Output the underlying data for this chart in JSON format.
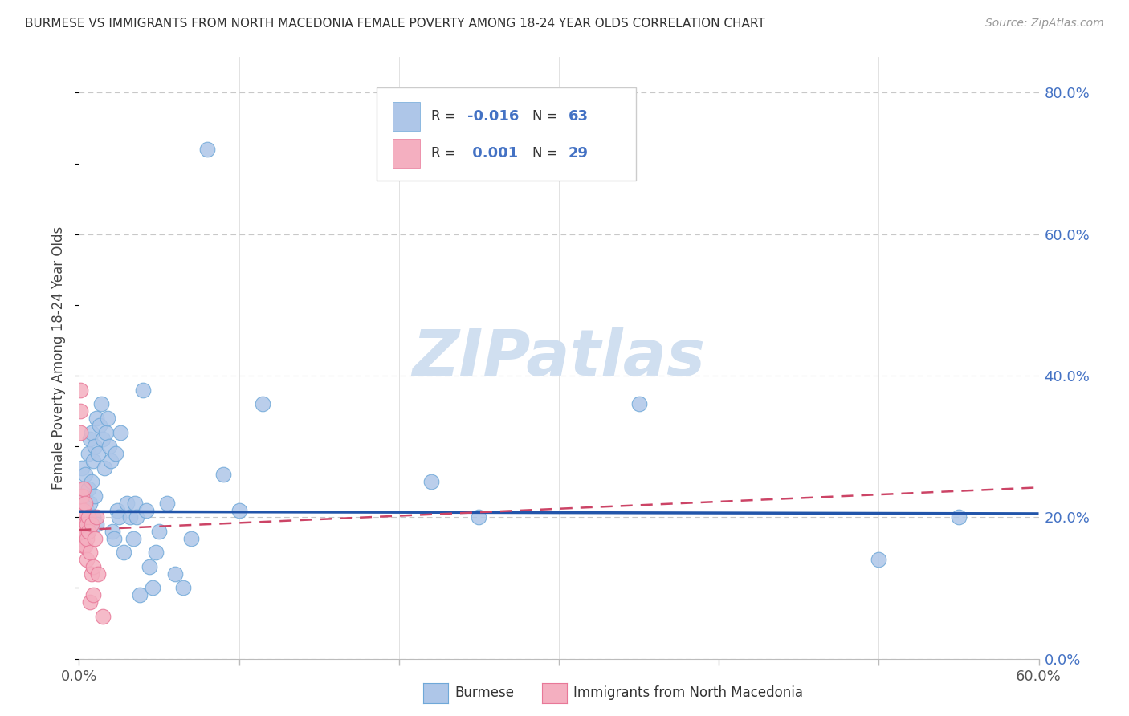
{
  "title": "BURMESE VS IMMIGRANTS FROM NORTH MACEDONIA FEMALE POVERTY AMONG 18-24 YEAR OLDS CORRELATION CHART",
  "source": "Source: ZipAtlas.com",
  "ylabel": "Female Poverty Among 18-24 Year Olds",
  "xlim": [
    0.0,
    0.6
  ],
  "ylim": [
    0.0,
    0.85
  ],
  "x_tick_positions": [
    0.0,
    0.6
  ],
  "x_tick_labels": [
    "0.0%",
    "60.0%"
  ],
  "y_ticks_right": [
    0.0,
    0.2,
    0.4,
    0.6,
    0.8
  ],
  "y_tick_labels_right": [
    "0.0%",
    "20.0%",
    "40.0%",
    "60.0%",
    "80.0%"
  ],
  "background_color": "#ffffff",
  "grid_color": "#c8c8c8",
  "series1_color": "#aec6e8",
  "series1_edge": "#6fa8d8",
  "series2_color": "#f4afc0",
  "series2_edge": "#e87898",
  "line1_color": "#2255aa",
  "line2_color": "#cc4466",
  "line1_intercept": 0.208,
  "line1_slope": -0.005,
  "line2_intercept": 0.182,
  "line2_slope": 0.1,
  "watermark_color": "#d0dff0",
  "legend_r1_label": "R = ",
  "legend_r1_val": "-0.016",
  "legend_n1_label": "N = ",
  "legend_n1_val": "63",
  "legend_r2_label": "R = ",
  "legend_r2_val": "0.001",
  "legend_n2_label": "N = ",
  "legend_n2_val": "29",
  "bottom_label1": "Burmese",
  "bottom_label2": "Immigrants from North Macedonia",
  "burmese_x": [
    0.001,
    0.001,
    0.002,
    0.002,
    0.003,
    0.003,
    0.004,
    0.004,
    0.005,
    0.005,
    0.006,
    0.006,
    0.007,
    0.007,
    0.008,
    0.008,
    0.009,
    0.009,
    0.01,
    0.01,
    0.011,
    0.011,
    0.012,
    0.013,
    0.014,
    0.015,
    0.016,
    0.017,
    0.018,
    0.019,
    0.02,
    0.021,
    0.022,
    0.023,
    0.024,
    0.025,
    0.026,
    0.028,
    0.03,
    0.032,
    0.034,
    0.035,
    0.036,
    0.038,
    0.04,
    0.042,
    0.044,
    0.046,
    0.048,
    0.05,
    0.055,
    0.06,
    0.065,
    0.07,
    0.08,
    0.09,
    0.1,
    0.115,
    0.22,
    0.25,
    0.35,
    0.5,
    0.55
  ],
  "burmese_y": [
    0.21,
    0.24,
    0.2,
    0.27,
    0.23,
    0.19,
    0.26,
    0.22,
    0.21,
    0.18,
    0.29,
    0.24,
    0.31,
    0.22,
    0.32,
    0.25,
    0.2,
    0.28,
    0.3,
    0.23,
    0.19,
    0.34,
    0.29,
    0.33,
    0.36,
    0.31,
    0.27,
    0.32,
    0.34,
    0.3,
    0.28,
    0.18,
    0.17,
    0.29,
    0.21,
    0.2,
    0.32,
    0.15,
    0.22,
    0.2,
    0.17,
    0.22,
    0.2,
    0.09,
    0.38,
    0.21,
    0.13,
    0.1,
    0.15,
    0.18,
    0.22,
    0.12,
    0.1,
    0.17,
    0.72,
    0.26,
    0.21,
    0.36,
    0.25,
    0.2,
    0.36,
    0.14,
    0.2
  ],
  "mac_x": [
    0.001,
    0.001,
    0.001,
    0.001,
    0.002,
    0.002,
    0.002,
    0.003,
    0.003,
    0.003,
    0.003,
    0.004,
    0.004,
    0.004,
    0.005,
    0.005,
    0.005,
    0.006,
    0.006,
    0.007,
    0.007,
    0.008,
    0.008,
    0.009,
    0.009,
    0.01,
    0.011,
    0.012,
    0.015
  ],
  "mac_y": [
    0.38,
    0.35,
    0.32,
    0.21,
    0.23,
    0.2,
    0.17,
    0.24,
    0.21,
    0.18,
    0.16,
    0.22,
    0.19,
    0.16,
    0.19,
    0.17,
    0.14,
    0.2,
    0.18,
    0.15,
    0.08,
    0.19,
    0.12,
    0.13,
    0.09,
    0.17,
    0.2,
    0.12,
    0.06
  ]
}
